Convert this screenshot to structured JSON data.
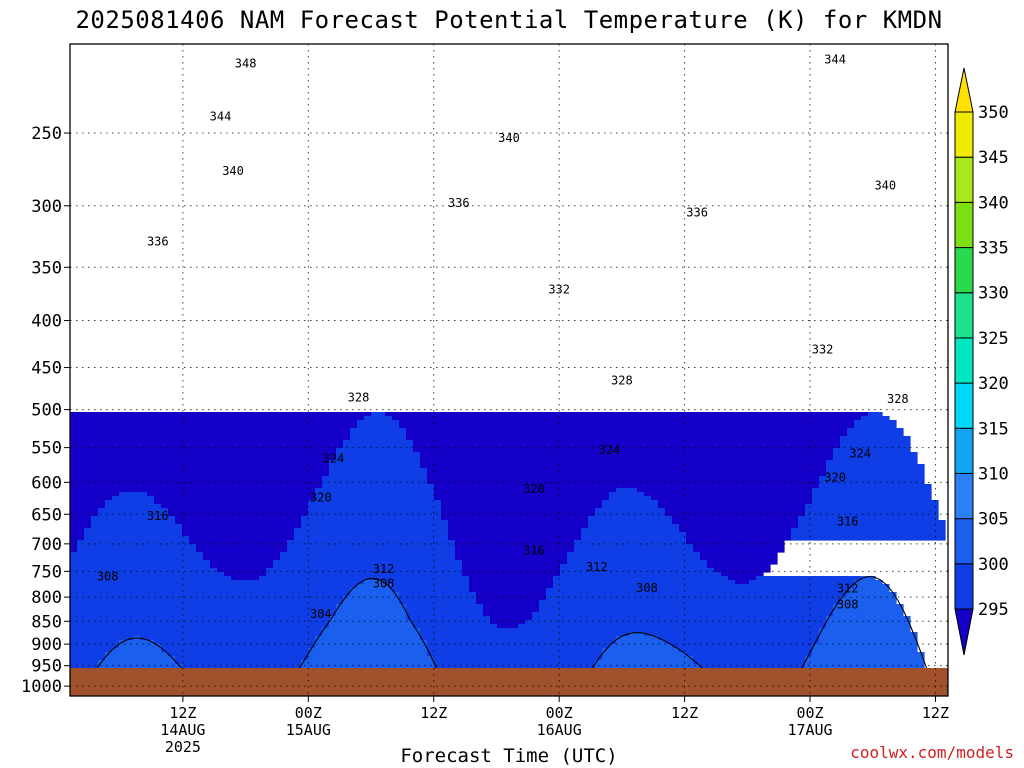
{
  "chart_data": {
    "type": "heatmap",
    "title": "2025081406 NAM Forecast Potential Temperature (K) for KMDN",
    "xlabel": "Forecast Time (UTC)",
    "ylabel": "",
    "credit": "coolwx.com/models",
    "y_scale": "log",
    "yaxis_ticks": [
      250,
      300,
      350,
      400,
      450,
      500,
      550,
      600,
      650,
      700,
      750,
      800,
      850,
      900,
      950,
      1000
    ],
    "yaxis_labels": [
      "250",
      "300",
      "350",
      "400",
      "450",
      "500",
      "550",
      "600",
      "650",
      "700",
      "750",
      "800",
      "850",
      "900",
      "950",
      "1000"
    ],
    "ylim": [
      200,
      1025
    ],
    "xlim_hours": [
      -3,
      67
    ],
    "xaxis_ticks": [
      {
        "hour": 6,
        "lines": [
          "12Z",
          "14AUG",
          "2025"
        ]
      },
      {
        "hour": 16,
        "lines": [
          "00Z",
          "15AUG"
        ]
      },
      {
        "hour": 26,
        "lines": [
          "12Z"
        ]
      },
      {
        "hour": 36,
        "lines": [
          "00Z",
          "16AUG"
        ]
      },
      {
        "hour": 46,
        "lines": [
          "12Z"
        ]
      },
      {
        "hour": 56,
        "lines": [
          "00Z",
          "17AUG"
        ]
      },
      {
        "hour": 66,
        "lines": [
          "12Z"
        ]
      }
    ],
    "colorbar": {
      "levels": [
        295,
        300,
        305,
        310,
        315,
        320,
        325,
        330,
        335,
        340,
        345,
        350
      ],
      "labels": [
        "295",
        "300",
        "305",
        "310",
        "315",
        "320",
        "325",
        "330",
        "335",
        "340",
        "345",
        "350"
      ],
      "colors": [
        "#1400c8",
        "#0f3ee6",
        "#1a5fee",
        "#2a80f4",
        "#12a6f2",
        "#00d9f6",
        "#00e6c0",
        "#1ce18e",
        "#2ad94e",
        "#7ede14",
        "#a7e81e",
        "#eeea00",
        "#ffe100"
      ]
    },
    "contour_levels": [
      300,
      304,
      308,
      312,
      316,
      320,
      324,
      328,
      332,
      336,
      340,
      344,
      348
    ],
    "contour_labels": [
      {
        "text": "348",
        "hour": 11,
        "p": 210
      },
      {
        "text": "344",
        "hour": 58,
        "p": 208
      },
      {
        "text": "344",
        "hour": 9,
        "p": 240
      },
      {
        "text": "340",
        "hour": 32,
        "p": 253
      },
      {
        "text": "340",
        "hour": 10,
        "p": 275
      },
      {
        "text": "340",
        "hour": 62,
        "p": 285
      },
      {
        "text": "336",
        "hour": 28,
        "p": 298
      },
      {
        "text": "336",
        "hour": 47,
        "p": 305
      },
      {
        "text": "336",
        "hour": 4,
        "p": 328
      },
      {
        "text": "332",
        "hour": 36,
        "p": 370
      },
      {
        "text": "332",
        "hour": 57,
        "p": 430
      },
      {
        "text": "328",
        "hour": 20,
        "p": 485
      },
      {
        "text": "328",
        "hour": 41,
        "p": 465
      },
      {
        "text": "328",
        "hour": 63,
        "p": 487
      },
      {
        "text": "324",
        "hour": 18,
        "p": 565
      },
      {
        "text": "324",
        "hour": 40,
        "p": 553
      },
      {
        "text": "324",
        "hour": 60,
        "p": 558
      },
      {
        "text": "320",
        "hour": 17,
        "p": 623
      },
      {
        "text": "320",
        "hour": 34,
        "p": 610
      },
      {
        "text": "320",
        "hour": 58,
        "p": 593
      },
      {
        "text": "316",
        "hour": 4,
        "p": 653
      },
      {
        "text": "316",
        "hour": 34,
        "p": 712
      },
      {
        "text": "316",
        "hour": 59,
        "p": 662
      },
      {
        "text": "312",
        "hour": 22,
        "p": 746
      },
      {
        "text": "312",
        "hour": 39,
        "p": 742
      },
      {
        "text": "312",
        "hour": 59,
        "p": 783
      },
      {
        "text": "308",
        "hour": 0,
        "p": 760
      },
      {
        "text": "308",
        "hour": 22,
        "p": 773
      },
      {
        "text": "308",
        "hour": 43,
        "p": 782
      },
      {
        "text": "308",
        "hour": 59,
        "p": 815
      },
      {
        "text": "304",
        "hour": 17,
        "p": 835
      }
    ]
  }
}
